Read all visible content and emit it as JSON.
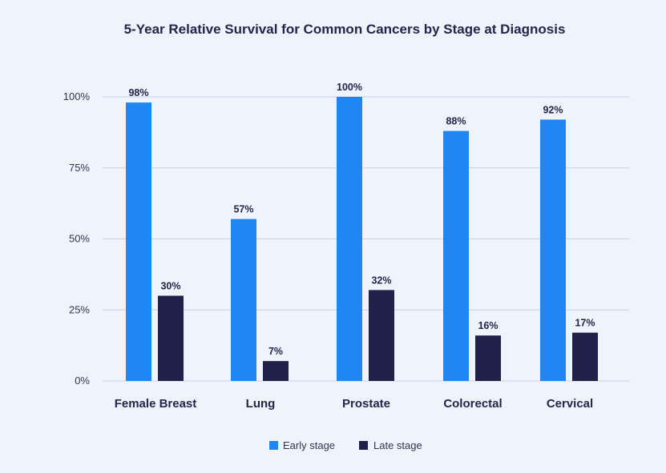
{
  "chart_data": {
    "type": "bar",
    "title": "5-Year Relative Survival for Common Cancers by Stage at Diagnosis",
    "xlabel": "",
    "ylabel": "",
    "ylim": [
      0,
      100
    ],
    "yticks": [
      0,
      25,
      50,
      75,
      100
    ],
    "ytick_labels": [
      "0%",
      "25%",
      "50%",
      "75%",
      "100%"
    ],
    "categories": [
      "Female Breast",
      "Lung",
      "Prostate",
      "Colorectal",
      "Cervical"
    ],
    "series": [
      {
        "name": "Early stage",
        "color": "#1f86f2",
        "values": [
          98,
          57,
          100,
          88,
          92
        ],
        "labels": [
          "98%",
          "57%",
          "100%",
          "88%",
          "92%"
        ]
      },
      {
        "name": "Late stage",
        "color": "#21204a",
        "values": [
          30,
          7,
          32,
          16,
          17
        ],
        "labels": [
          "30%",
          "7%",
          "32%",
          "16%",
          "17%"
        ]
      }
    ],
    "grid": true,
    "legend_position": "bottom-center"
  }
}
